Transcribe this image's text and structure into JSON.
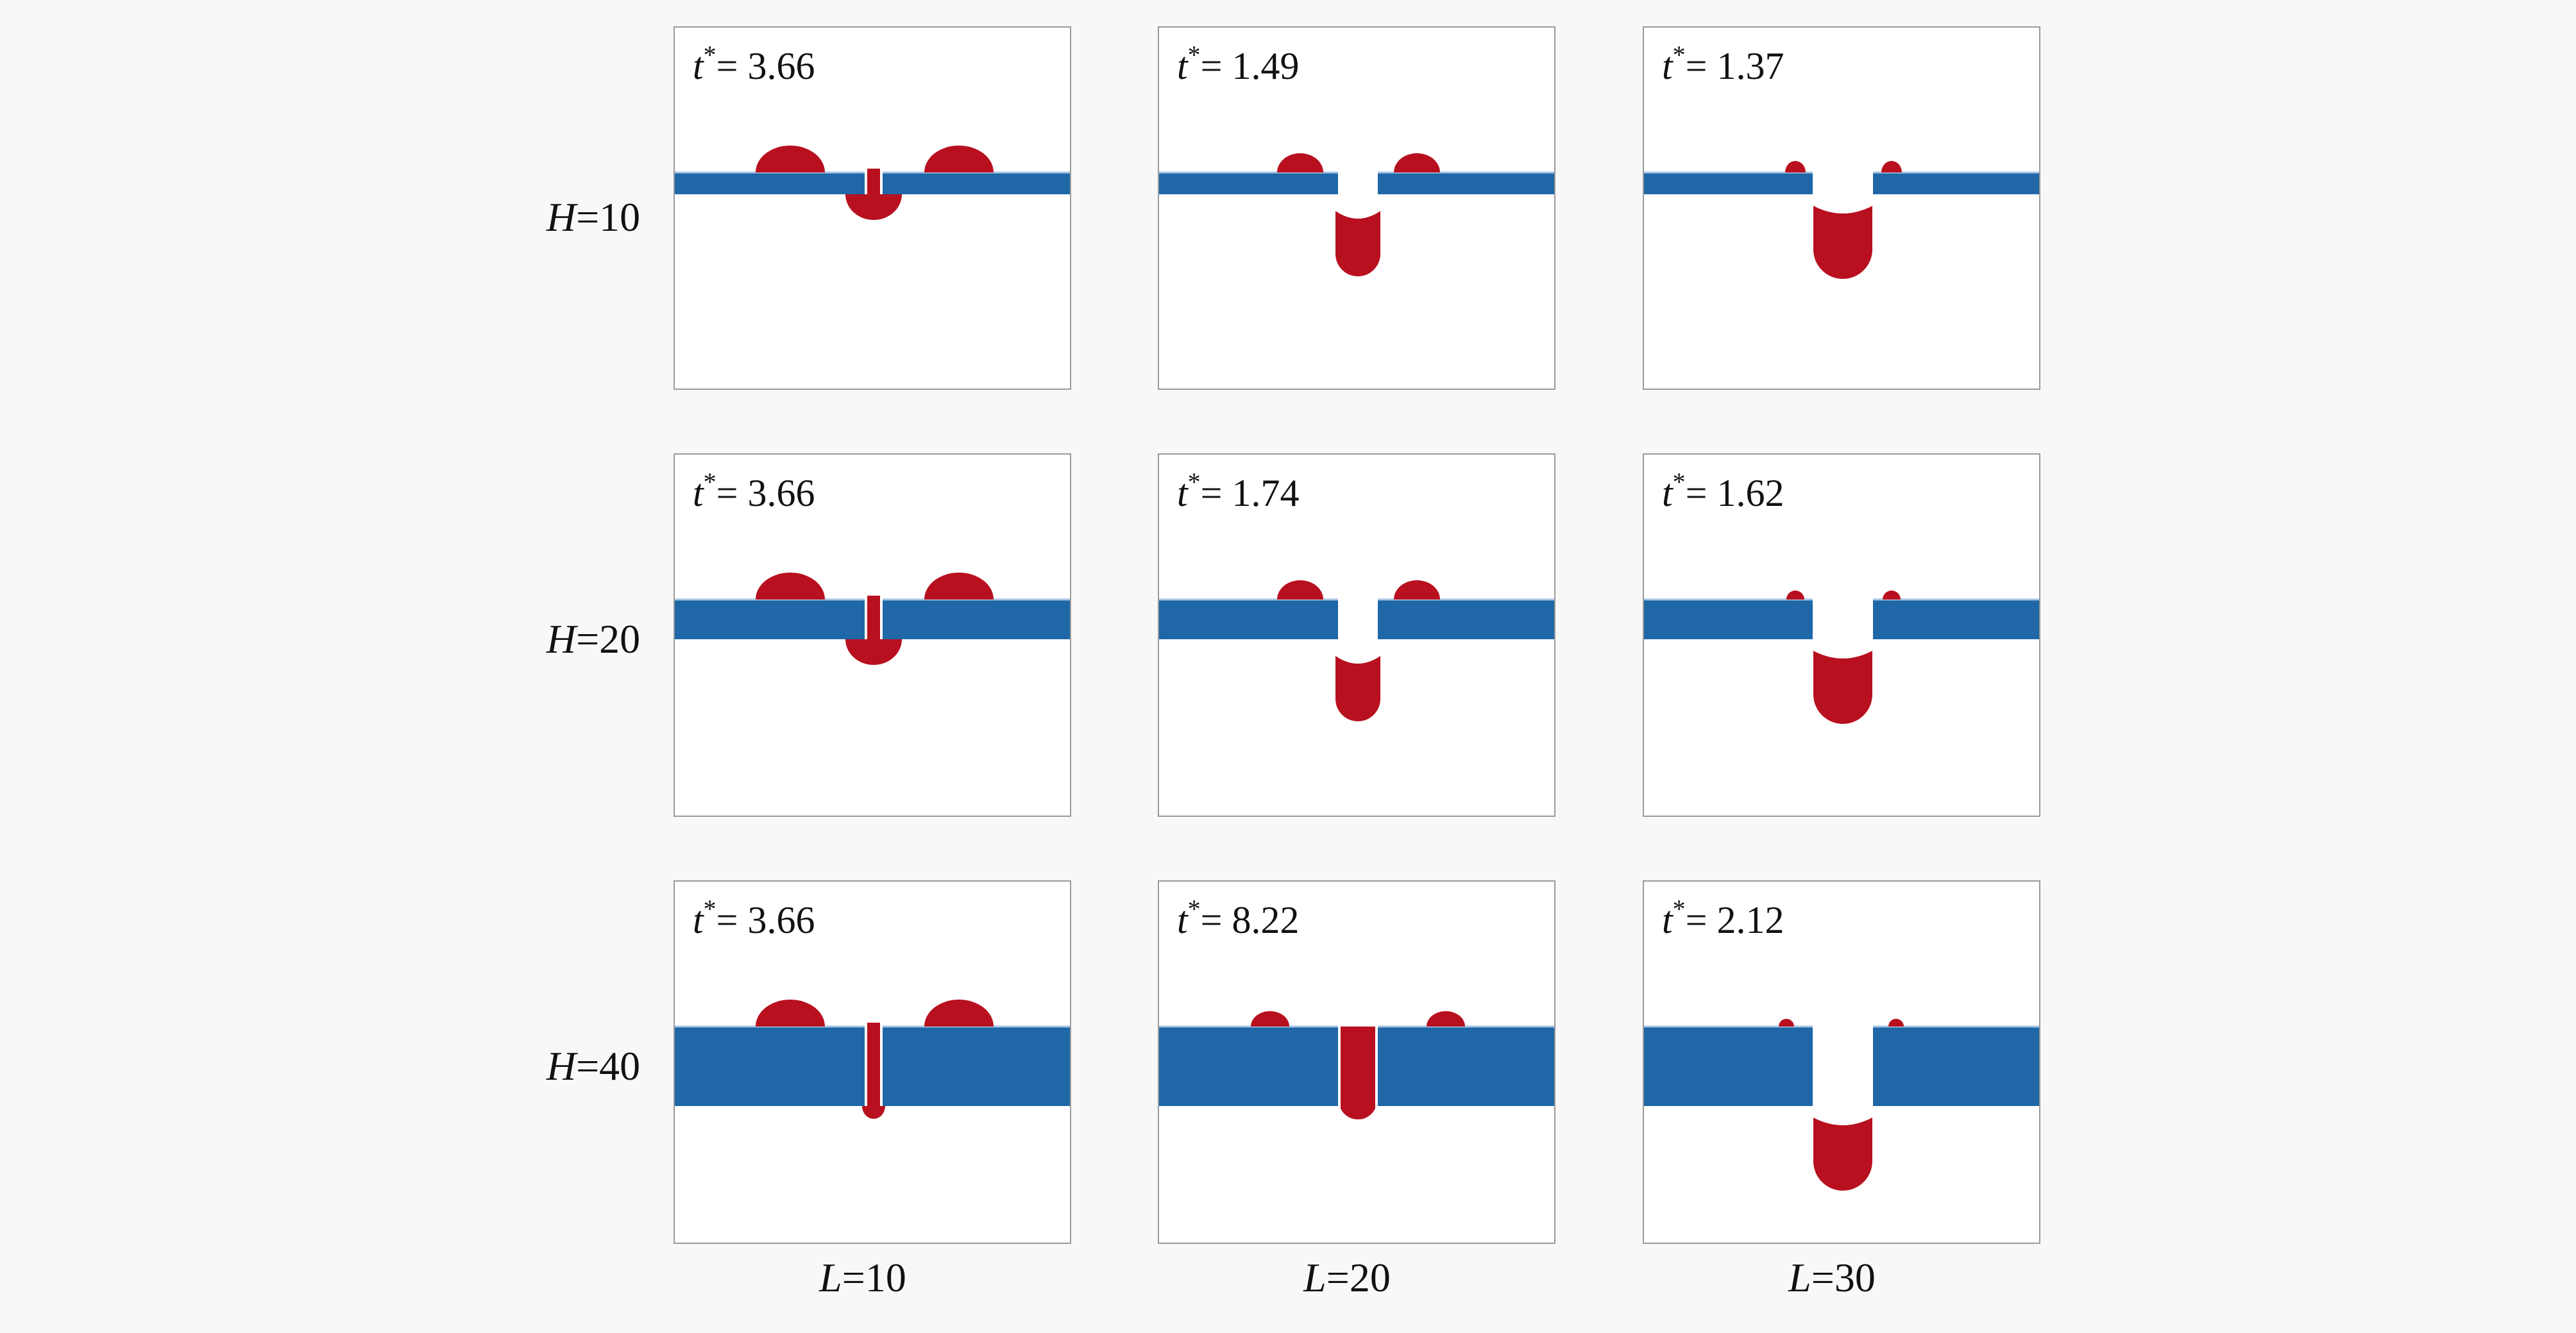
{
  "colors": {
    "plate": "#1f67a6",
    "plate_edge": "#a9c6e6",
    "droplet": "#b8101f",
    "panel_border": "#9a9a9a",
    "background": "#f8f8f8"
  },
  "row_labels": [
    {
      "var": "H",
      "eq": "=",
      "value": "10"
    },
    {
      "var": "H",
      "eq": "=",
      "value": "20"
    },
    {
      "var": "H",
      "eq": "=",
      "value": "40"
    }
  ],
  "col_labels": [
    {
      "var": "L",
      "eq": "=",
      "value": "10"
    },
    {
      "var": "L",
      "eq": "=",
      "value": "20"
    },
    {
      "var": "L",
      "eq": "=",
      "value": "30"
    }
  ],
  "time_var": "t",
  "time_sup": "*",
  "time_eq": "= ",
  "panels": [
    [
      {
        "t": "3.66",
        "H": 10,
        "L": 10,
        "state": "L10"
      },
      {
        "t": "1.49",
        "H": 10,
        "L": 20,
        "state": "L20"
      },
      {
        "t": "1.37",
        "H": 10,
        "L": 30,
        "state": "L30"
      }
    ],
    [
      {
        "t": "3.66",
        "H": 20,
        "L": 10,
        "state": "L10"
      },
      {
        "t": "1.74",
        "H": 20,
        "L": 20,
        "state": "L20"
      },
      {
        "t": "1.62",
        "H": 20,
        "L": 30,
        "state": "L30"
      }
    ],
    [
      {
        "t": "3.66",
        "H": 40,
        "L": 10,
        "state": "L10"
      },
      {
        "t": "8.22",
        "H": 40,
        "L": 20,
        "state": "L20-filled"
      },
      {
        "t": "2.12",
        "H": 40,
        "L": 30,
        "state": "L30"
      }
    ]
  ]
}
